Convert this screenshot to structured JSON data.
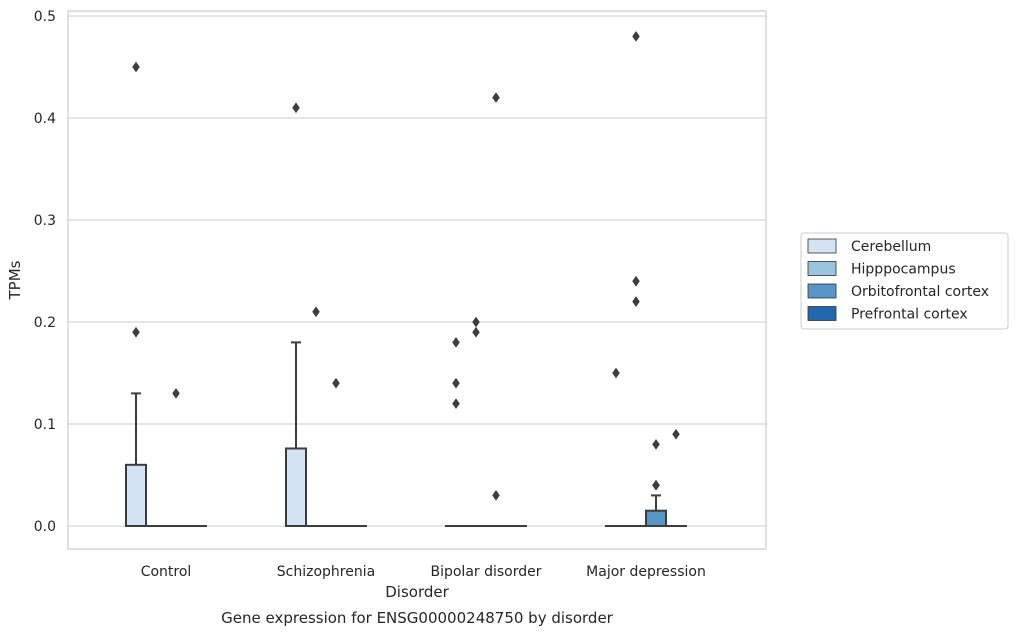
{
  "chart_data": {
    "type": "box",
    "xlabel": "Disorder",
    "ylabel": "TPMs",
    "caption": "Gene expression for ENSG00000248750 by disorder",
    "ylim": [
      -0.023,
      0.505
    ],
    "yticks": [
      0.0,
      0.1,
      0.2,
      0.3,
      0.4,
      0.5
    ],
    "ytick_labels": [
      "0.0",
      "0.1",
      "0.2",
      "0.3",
      "0.4",
      "0.5"
    ],
    "grid": "horizontal",
    "legend_position": "right",
    "categories": [
      "Control",
      "Schizophrenia",
      "Bipolar disorder",
      "Major depression"
    ],
    "series": [
      {
        "name": "Cerebellum",
        "color": "#d4e3f3",
        "boxes": [
          {
            "q1": 0.0,
            "median": 0.0,
            "q3": 0.06,
            "whisker_low": 0.0,
            "whisker_high": 0.13,
            "outliers": [
              0.19,
              0.45
            ]
          },
          {
            "q1": 0.0,
            "median": 0.0,
            "q3": 0.076,
            "whisker_low": 0.0,
            "whisker_high": 0.18,
            "outliers": [
              0.41
            ]
          },
          {
            "q1": 0.0,
            "median": 0.0,
            "q3": 0.0,
            "whisker_low": 0.0,
            "whisker_high": 0.0,
            "outliers": [
              0.12,
              0.14,
              0.18
            ]
          },
          {
            "q1": 0.0,
            "median": 0.0,
            "q3": 0.0,
            "whisker_low": 0.0,
            "whisker_high": 0.0,
            "outliers": [
              0.15
            ]
          }
        ]
      },
      {
        "name": "Hipppocampus",
        "color": "#9ac5de",
        "boxes": [
          {
            "q1": 0.0,
            "median": 0.0,
            "q3": 0.0,
            "whisker_low": 0.0,
            "whisker_high": 0.0,
            "outliers": []
          },
          {
            "q1": 0.0,
            "median": 0.0,
            "q3": 0.0,
            "whisker_low": 0.0,
            "whisker_high": 0.0,
            "outliers": [
              0.21
            ]
          },
          {
            "q1": 0.0,
            "median": 0.0,
            "q3": 0.0,
            "whisker_low": 0.0,
            "whisker_high": 0.0,
            "outliers": [
              0.19,
              0.2
            ]
          },
          {
            "q1": 0.0,
            "median": 0.0,
            "q3": 0.0,
            "whisker_low": 0.0,
            "whisker_high": 0.0,
            "outliers": [
              0.22,
              0.24,
              0.48
            ]
          }
        ]
      },
      {
        "name": "Orbitofrontal cortex",
        "color": "#5896c8",
        "boxes": [
          {
            "q1": 0.0,
            "median": 0.0,
            "q3": 0.0,
            "whisker_low": 0.0,
            "whisker_high": 0.0,
            "outliers": [
              0.13
            ]
          },
          {
            "q1": 0.0,
            "median": 0.0,
            "q3": 0.0,
            "whisker_low": 0.0,
            "whisker_high": 0.0,
            "outliers": [
              0.14
            ]
          },
          {
            "q1": 0.0,
            "median": 0.0,
            "q3": 0.0,
            "whisker_low": 0.0,
            "whisker_high": 0.0,
            "outliers": [
              0.03,
              0.42
            ]
          },
          {
            "q1": 0.0,
            "median": 0.0,
            "q3": 0.015,
            "whisker_low": 0.0,
            "whisker_high": 0.03,
            "outliers": [
              0.04,
              0.04,
              0.08
            ]
          }
        ]
      },
      {
        "name": "Prefrontal cortex",
        "color": "#2367ae",
        "boxes": [
          {
            "q1": 0.0,
            "median": 0.0,
            "q3": 0.0,
            "whisker_low": 0.0,
            "whisker_high": 0.0,
            "outliers": []
          },
          {
            "q1": 0.0,
            "median": 0.0,
            "q3": 0.0,
            "whisker_low": 0.0,
            "whisker_high": 0.0,
            "outliers": []
          },
          {
            "q1": 0.0,
            "median": 0.0,
            "q3": 0.0,
            "whisker_low": 0.0,
            "whisker_high": 0.0,
            "outliers": []
          },
          {
            "q1": 0.0,
            "median": 0.0,
            "q3": 0.0,
            "whisker_low": 0.0,
            "whisker_high": 0.0,
            "outliers": [
              0.09
            ]
          }
        ]
      }
    ]
  }
}
